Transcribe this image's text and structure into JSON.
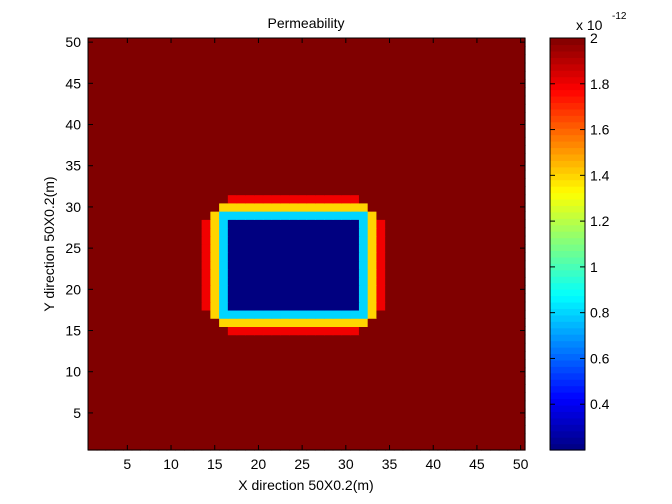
{
  "chart_data": {
    "type": "heatmap",
    "title": "Permeability",
    "xlabel": "X direction 50X0.2(m)",
    "ylabel": "Y direction 50X0.2(m)",
    "xlim": [
      0.5,
      50.5
    ],
    "ylim": [
      0.5,
      50.5
    ],
    "xticks": [
      5,
      10,
      15,
      20,
      25,
      30,
      35,
      40,
      45,
      50
    ],
    "yticks": [
      5,
      10,
      15,
      20,
      25,
      30,
      35,
      40,
      45,
      50
    ],
    "grid_size": [
      50,
      50
    ],
    "background_value": 2e-12,
    "inclusion": {
      "x_range": [
        17,
        31
      ],
      "y_range": [
        18,
        28
      ],
      "value": 2e-13,
      "transition_rings": [
        {
          "ring": 1,
          "value": 8e-13
        },
        {
          "ring": 2,
          "value": 1.4e-12
        },
        {
          "ring": 3,
          "value": 1.8e-12
        }
      ]
    },
    "colorbar": {
      "colormap": "jet",
      "range": [
        2e-13,
        2e-12
      ],
      "exponent_label": "x 10",
      "exponent": "-12",
      "ticks": [
        0.4,
        0.6,
        0.8,
        1,
        1.2,
        1.4,
        1.6,
        1.8,
        2
      ],
      "tick_labels": [
        "0.4",
        "0.6",
        "0.8",
        "1",
        "1.2",
        "1.4",
        "1.6",
        "1.8",
        "2"
      ]
    }
  }
}
